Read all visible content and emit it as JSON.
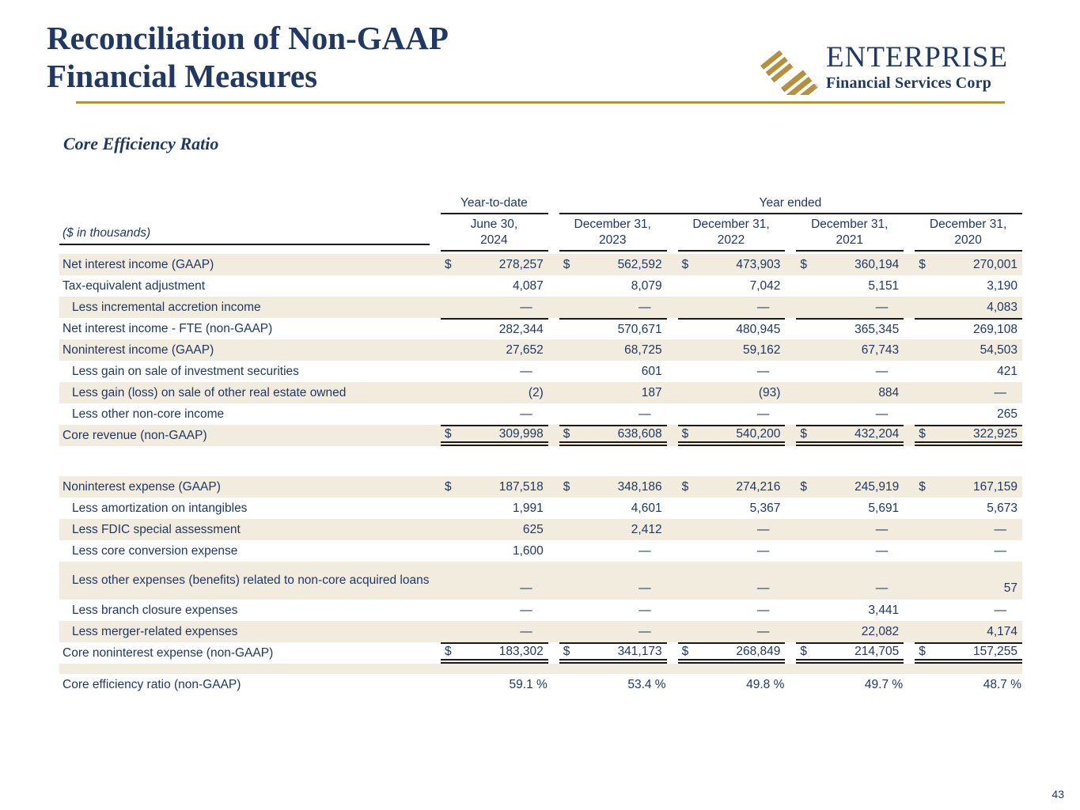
{
  "slide": {
    "title_line1": "Reconciliation of Non-GAAP",
    "title_line2": "Financial Measures",
    "section_title": "Core Efficiency Ratio",
    "page_number": "43"
  },
  "logo": {
    "name": "ENTERPRISE",
    "subtitle": "Financial Services Corp",
    "mark_icon": "diagonal-stripes-icon",
    "registered_mark": "®"
  },
  "colors": {
    "navy": "#1F3864",
    "gold": "#B3913F",
    "stripe": "#F2ECDE",
    "rule": "#1A1A1A"
  },
  "table": {
    "units_label": "($ in thousands)",
    "group_headers": [
      {
        "label": "Year-to-date",
        "span": 1
      },
      {
        "label": "Year ended",
        "span": 4
      }
    ],
    "column_headers": [
      {
        "line1": "June 30,",
        "line2": "2024"
      },
      {
        "line1": "December 31,",
        "line2": "2023"
      },
      {
        "line1": "December 31,",
        "line2": "2022"
      },
      {
        "line1": "December 31,",
        "line2": "2021"
      },
      {
        "line1": "December 31,",
        "line2": "2020"
      }
    ],
    "rows": [
      {
        "label": "Net interest income (GAAP)",
        "indent": false,
        "dollar": true,
        "stripe": true,
        "values": [
          "278,257",
          "562,592",
          "473,903",
          "360,194",
          "270,001"
        ]
      },
      {
        "label": "Tax-equivalent adjustment",
        "indent": false,
        "dollar": false,
        "stripe": false,
        "values": [
          "4,087",
          "8,079",
          "7,042",
          "5,151",
          "3,190"
        ]
      },
      {
        "label": "Less incremental accretion income",
        "indent": true,
        "dollar": false,
        "stripe": true,
        "values": [
          "—",
          "—",
          "—",
          "—",
          "4,083"
        ]
      },
      {
        "label": "Net interest income - FTE (non-GAAP)",
        "indent": false,
        "dollar": false,
        "stripe": false,
        "rule_top": true,
        "values": [
          "282,344",
          "570,671",
          "480,945",
          "365,345",
          "269,108"
        ]
      },
      {
        "label": "Noninterest income (GAAP)",
        "indent": false,
        "dollar": false,
        "stripe": true,
        "values": [
          "27,652",
          "68,725",
          "59,162",
          "67,743",
          "54,503"
        ]
      },
      {
        "label": "Less gain on sale of investment securities",
        "indent": true,
        "dollar": false,
        "stripe": false,
        "values": [
          "—",
          "601",
          "—",
          "—",
          "421"
        ]
      },
      {
        "label": "Less gain (loss) on sale of other real estate owned",
        "indent": true,
        "dollar": false,
        "stripe": true,
        "values": [
          "(2)",
          "187",
          "(93)",
          "884",
          "—"
        ]
      },
      {
        "label": "Less other non-core income",
        "indent": true,
        "dollar": false,
        "stripe": false,
        "values": [
          "—",
          "—",
          "—",
          "—",
          "265"
        ]
      },
      {
        "label": "Core revenue (non-GAAP)",
        "indent": false,
        "dollar": true,
        "stripe": true,
        "rule_top": true,
        "rule_double": true,
        "values": [
          "309,998",
          "638,608",
          "540,200",
          "432,204",
          "322,925"
        ]
      },
      {
        "spacer": "white"
      },
      {
        "label": "Noninterest expense (GAAP)",
        "indent": false,
        "dollar": true,
        "stripe": true,
        "values": [
          "187,518",
          "348,186",
          "274,216",
          "245,919",
          "167,159"
        ]
      },
      {
        "label": "Less amortization on intangibles",
        "indent": true,
        "dollar": false,
        "stripe": false,
        "values": [
          "1,991",
          "4,601",
          "5,367",
          "5,691",
          "5,673"
        ]
      },
      {
        "label": "Less FDIC special assessment",
        "indent": true,
        "dollar": false,
        "stripe": true,
        "values": [
          "625",
          "2,412",
          "—",
          "—",
          "—"
        ]
      },
      {
        "label": "Less core conversion expense",
        "indent": true,
        "dollar": false,
        "stripe": false,
        "values": [
          "1,600",
          "—",
          "—",
          "—",
          "—"
        ]
      },
      {
        "label": "Less other expenses (benefits) related to non-core acquired loans",
        "indent": true,
        "dollar": false,
        "stripe": true,
        "tall": true,
        "values": [
          "—",
          "—",
          "—",
          "—",
          "57"
        ]
      },
      {
        "label": "Less branch closure expenses",
        "indent": true,
        "dollar": false,
        "stripe": false,
        "values": [
          "—",
          "—",
          "—",
          "3,441",
          "—"
        ]
      },
      {
        "label": "Less merger-related expenses",
        "indent": true,
        "dollar": false,
        "stripe": true,
        "values": [
          "—",
          "—",
          "—",
          "22,082",
          "4,174"
        ]
      },
      {
        "label": "Core noninterest expense (non-GAAP)",
        "indent": false,
        "dollar": true,
        "stripe": false,
        "rule_top": true,
        "rule_double": true,
        "values": [
          "183,302",
          "341,173",
          "268,849",
          "214,705",
          "157,255"
        ]
      },
      {
        "spacer": "beige"
      },
      {
        "label": "Core efficiency ratio (non-GAAP)",
        "indent": false,
        "dollar": false,
        "stripe": false,
        "percent": true,
        "values": [
          "59.1 %",
          "53.4 %",
          "49.8 %",
          "49.7 %",
          "48.7 %"
        ]
      }
    ]
  }
}
